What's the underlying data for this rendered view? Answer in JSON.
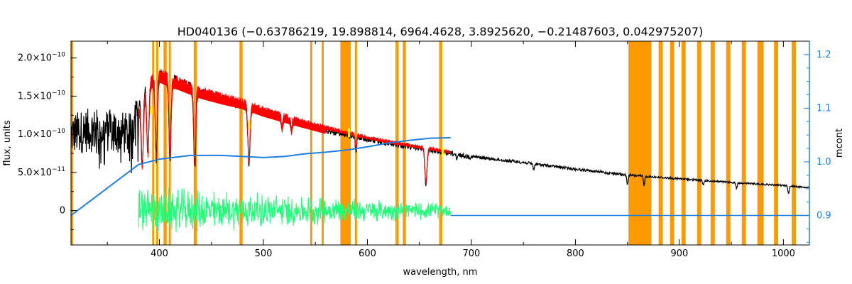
{
  "chart_data": {
    "type": "line",
    "title": "HD040136    (−0.63786219, 19.898814, 6964.4628, 3.8925620, −0.21487603, 0.042975207)",
    "xlabel": "wavelength, nm",
    "ylabel": "flux, units",
    "ylabel_right": "mcont",
    "xlim": [
      315,
      1025
    ],
    "ylim": [
      -4.5e-11,
      2.22e-10
    ],
    "ylim_right": [
      0.845,
      1.225
    ],
    "grid": false,
    "colors": {
      "observed": "#000000",
      "model": "#ff0000",
      "residual": "#22ff7a",
      "mcont": "#1e7fe0",
      "masked": "#ff9900",
      "highlight": "#ffff00",
      "right_axis": "#1e7fe0"
    },
    "x_ticks": [
      {
        "value": 400,
        "label": "400"
      },
      {
        "value": 500,
        "label": "500"
      },
      {
        "value": 600,
        "label": "600"
      },
      {
        "value": 700,
        "label": "700"
      },
      {
        "value": 800,
        "label": "800"
      },
      {
        "value": 900,
        "label": "900"
      },
      {
        "value": 1000,
        "label": "1000"
      }
    ],
    "y_ticks": [
      {
        "value": 0,
        "label_main": "0",
        "label_exp": ""
      },
      {
        "value": 5e-11,
        "label_main": "5.0×10",
        "label_exp": "−11"
      },
      {
        "value": 1e-10,
        "label_main": "1.0×10",
        "label_exp": "−10"
      },
      {
        "value": 1.5e-10,
        "label_main": "1.5×10",
        "label_exp": "−10"
      },
      {
        "value": 2e-10,
        "label_main": "2.0×10",
        "label_exp": "−10"
      }
    ],
    "y_right_ticks": [
      {
        "value": 0.9,
        "label": "0.9"
      },
      {
        "value": 1.0,
        "label": "1.0"
      },
      {
        "value": 1.1,
        "label": "1.1"
      },
      {
        "value": 1.2,
        "label": "1.2"
      }
    ],
    "masked_regions": [
      [
        315,
        317
      ],
      [
        393,
        395
      ],
      [
        397,
        399
      ],
      [
        404,
        407
      ],
      [
        409,
        411
      ],
      [
        433,
        436
      ],
      [
        477,
        480
      ],
      [
        545,
        547
      ],
      [
        556,
        558
      ],
      [
        574,
        584
      ],
      [
        588,
        590
      ],
      [
        627,
        630
      ],
      [
        634,
        637
      ],
      [
        669,
        672
      ],
      [
        851,
        873
      ],
      [
        880,
        884
      ],
      [
        891,
        895
      ],
      [
        902,
        906
      ],
      [
        917,
        921
      ],
      [
        930,
        934
      ],
      [
        945,
        949
      ],
      [
        960,
        964
      ],
      [
        975,
        981
      ],
      [
        991,
        995
      ],
      [
        1008,
        1012
      ]
    ],
    "observed_flux": {
      "x": [
        315,
        330,
        345,
        360,
        372,
        380,
        385,
        390,
        395,
        400,
        405,
        410,
        420,
        430,
        440,
        450,
        470,
        500,
        530,
        560,
        590,
        620,
        650,
        680,
        700,
        750,
        800,
        850,
        900,
        950,
        1000,
        1025
      ],
      "y": [
        1e-10,
        1.05e-10,
        1.05e-10,
        1.03e-10,
        1e-10,
        1.45e-10,
        1.65e-10,
        1.75e-10,
        1.82e-10,
        1.87e-10,
        1.85e-10,
        1.8e-10,
        1.75e-10,
        1.7e-10,
        1.62e-10,
        1.58e-10,
        1.48e-10,
        1.35e-10,
        1.22e-10,
        1.1e-10,
        1e-10,
        9.2e-11,
        8.5e-11,
        7.8e-11,
        7.3e-11,
        6.5e-11,
        5.6e-11,
        4.8e-11,
        4.3e-11,
        3.8e-11,
        3.4e-11,
        3.1e-11
      ]
    },
    "model_flux": {
      "x": [
        380,
        390,
        400,
        410,
        420,
        440,
        460,
        480,
        500,
        530,
        560,
        590,
        620,
        650,
        680
      ],
      "y": [
        1.35e-10,
        1.75e-10,
        1.87e-10,
        1.8e-10,
        1.75e-10,
        1.63e-10,
        1.55e-10,
        1.48e-10,
        1.37e-10,
        1.24e-10,
        1.12e-10,
        1.02e-10,
        9.3e-11,
        8.6e-11,
        7.9e-11
      ]
    },
    "absorption_lines": [
      {
        "x": 383.5,
        "depth": 0.6
      },
      {
        "x": 388.9,
        "depth": 0.55
      },
      {
        "x": 397.0,
        "depth": 0.6
      },
      {
        "x": 410.2,
        "depth": 0.6
      },
      {
        "x": 434.0,
        "depth": 0.62
      },
      {
        "x": 486.1,
        "depth": 0.55
      },
      {
        "x": 518,
        "depth": 0.12
      },
      {
        "x": 527,
        "depth": 0.12
      },
      {
        "x": 589,
        "depth": 0.2
      },
      {
        "x": 656.3,
        "depth": 0.55
      },
      {
        "x": 686,
        "depth": 0.1
      },
      {
        "x": 760,
        "depth": 0.12
      },
      {
        "x": 850,
        "depth": 0.25
      },
      {
        "x": 866,
        "depth": 0.25
      },
      {
        "x": 923,
        "depth": 0.15
      },
      {
        "x": 955,
        "depth": 0.2
      },
      {
        "x": 1005,
        "depth": 0.3
      }
    ],
    "residual_flux": {
      "x_range": [
        380,
        680
      ],
      "amplitude_start": 3.5e-11,
      "amplitude_end": 1e-11
    },
    "mcont": {
      "x": [
        315,
        380,
        400,
        430,
        460,
        480,
        500,
        520,
        540,
        560,
        580,
        600,
        620,
        640,
        660,
        680
      ],
      "y": [
        0.9,
        0.995,
        1.005,
        1.012,
        1.012,
        1.01,
        1.008,
        1.01,
        1.015,
        1.018,
        1.022,
        1.028,
        1.035,
        1.04,
        1.044,
        1.045
      ],
      "baseline_x_range": [
        680,
        1025
      ],
      "baseline_y": 0.9
    }
  }
}
